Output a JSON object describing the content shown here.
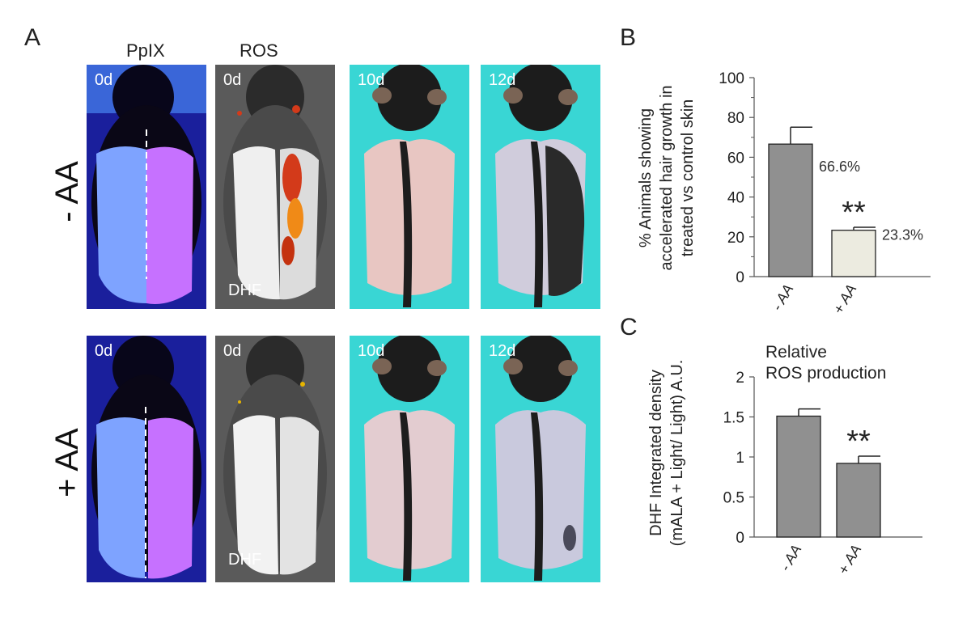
{
  "panel_A": {
    "letter": "A",
    "col_heads": [
      "PpIX",
      "ROS"
    ],
    "row_labels": [
      "- AA",
      "+ AA"
    ],
    "rows": [
      {
        "frames": [
          {
            "time": "0d",
            "label": ""
          },
          {
            "time": "0d",
            "label": "DHF"
          },
          {
            "time": "10d",
            "label": ""
          },
          {
            "time": "12d",
            "label": ""
          }
        ]
      },
      {
        "frames": [
          {
            "time": "0d",
            "label": ""
          },
          {
            "time": "0d",
            "label": "DHF"
          },
          {
            "time": "10d",
            "label": ""
          },
          {
            "time": "12d",
            "label": ""
          }
        ]
      }
    ]
  },
  "panel_B_letter": "B",
  "panel_C_letter": "C",
  "colors": {
    "bar_minus": "#909090",
    "bar_plus_B": "#ecebe0",
    "bar_plus_C": "#909090",
    "cyan_bg": "#39d6d4",
    "uv_bg": "#1a1f9c"
  },
  "chart_data": [
    {
      "type": "bar",
      "categories": [
        "- AA",
        "+ AA"
      ],
      "values": [
        66.6,
        23.3
      ],
      "errors": [
        8.5,
        1.5
      ],
      "value_labels": [
        "66.6%",
        "23.3%"
      ],
      "significance": [
        "",
        "**"
      ],
      "ylabel_lines": [
        "% Animals showing",
        "accelerated  hair growth in",
        "treated vs control skin"
      ],
      "yticks": [
        "0",
        "20",
        "40",
        "60",
        "80",
        "100"
      ],
      "ylim": [
        0,
        100
      ]
    },
    {
      "type": "bar",
      "categories": [
        "- AA",
        "+ AA"
      ],
      "values": [
        1.51,
        0.92
      ],
      "errors": [
        0.09,
        0.09
      ],
      "significance": [
        "",
        "**"
      ],
      "annotation_lines": [
        "Relative",
        "ROS production"
      ],
      "ylabel_lines": [
        "DHF Integrated density",
        "(mALA + Light/ Light) A.U."
      ],
      "yticks": [
        "0",
        "0.5",
        "1",
        "1.5",
        "2"
      ],
      "ylim": [
        0,
        2
      ]
    }
  ]
}
